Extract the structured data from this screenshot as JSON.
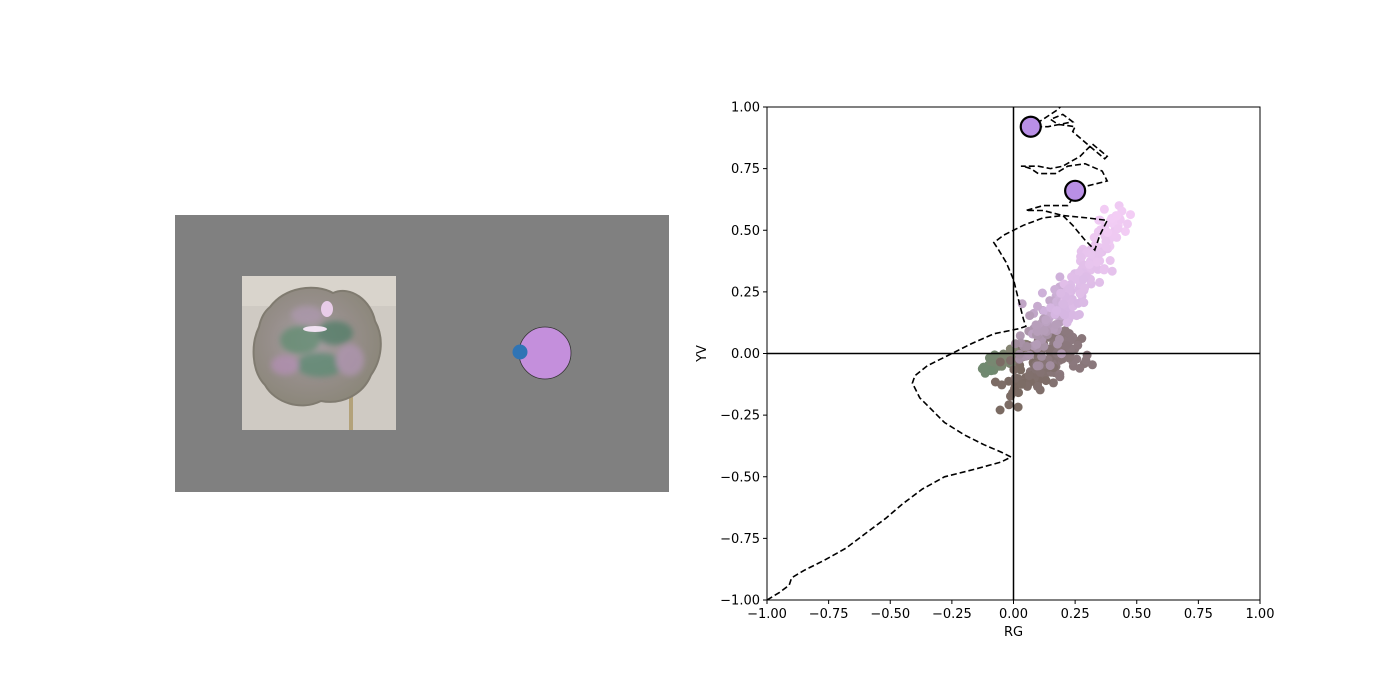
{
  "stimulus": {
    "background_color": "#808080",
    "photo_icon": "iridescent-blob-photo",
    "target_color": "#c48fdc",
    "marker_color": "#2f74b5"
  },
  "chart_data": {
    "type": "scatter",
    "xlabel": "RG",
    "ylabel": "YV",
    "xlim": [
      -1.0,
      1.0
    ],
    "ylim": [
      -1.0,
      1.0
    ],
    "xticks": [
      "−1.00",
      "−0.75",
      "−0.50",
      "−0.25",
      "0.00",
      "0.25",
      "0.50",
      "0.75",
      "1.00"
    ],
    "yticks": [
      "−1.00",
      "−0.75",
      "−0.50",
      "−0.25",
      "0.00",
      "0.25",
      "0.50",
      "0.75",
      "1.00"
    ],
    "grid": false,
    "axis_lines": {
      "x": 0,
      "y": 0
    },
    "highlight_points": [
      {
        "x": 0.07,
        "y": 0.92,
        "color": "#b98fe6"
      },
      {
        "x": 0.25,
        "y": 0.66,
        "color": "#b98fe6"
      }
    ],
    "trajectory": [
      [
        -1.0,
        -1.0
      ],
      [
        -0.95,
        -0.97
      ],
      [
        -0.91,
        -0.94
      ],
      [
        -0.9,
        -0.91
      ],
      [
        -0.85,
        -0.88
      ],
      [
        -0.77,
        -0.84
      ],
      [
        -0.68,
        -0.79
      ],
      [
        -0.6,
        -0.73
      ],
      [
        -0.52,
        -0.67
      ],
      [
        -0.45,
        -0.61
      ],
      [
        -0.37,
        -0.55
      ],
      [
        -0.28,
        -0.5
      ],
      [
        -0.16,
        -0.47
      ],
      [
        -0.05,
        -0.44
      ],
      [
        -0.01,
        -0.42
      ],
      [
        -0.05,
        -0.4
      ],
      [
        -0.12,
        -0.37
      ],
      [
        -0.2,
        -0.33
      ],
      [
        -0.28,
        -0.28
      ],
      [
        -0.34,
        -0.22
      ],
      [
        -0.38,
        -0.18
      ],
      [
        -0.41,
        -0.12
      ],
      [
        -0.4,
        -0.09
      ],
      [
        -0.35,
        -0.05
      ],
      [
        -0.27,
        -0.01
      ],
      [
        -0.17,
        0.04
      ],
      [
        -0.08,
        0.08
      ],
      [
        0.02,
        0.1
      ],
      [
        0.05,
        0.11
      ],
      [
        0.04,
        0.14
      ],
      [
        0.02,
        0.22
      ],
      [
        0.0,
        0.3
      ],
      [
        -0.03,
        0.37
      ],
      [
        -0.06,
        0.42
      ],
      [
        -0.08,
        0.45
      ],
      [
        -0.04,
        0.48
      ],
      [
        0.04,
        0.52
      ],
      [
        0.12,
        0.55
      ],
      [
        0.2,
        0.56
      ],
      [
        0.3,
        0.55
      ],
      [
        0.38,
        0.54
      ],
      [
        0.35,
        0.48
      ],
      [
        0.33,
        0.42
      ],
      [
        0.29,
        0.46
      ],
      [
        0.24,
        0.52
      ],
      [
        0.2,
        0.56
      ],
      [
        0.12,
        0.58
      ],
      [
        0.05,
        0.58
      ],
      [
        0.12,
        0.6
      ],
      [
        0.22,
        0.6
      ],
      [
        0.24,
        0.63
      ],
      [
        0.25,
        0.66
      ],
      [
        0.3,
        0.68
      ],
      [
        0.38,
        0.7
      ],
      [
        0.36,
        0.74
      ],
      [
        0.29,
        0.77
      ],
      [
        0.22,
        0.76
      ],
      [
        0.17,
        0.73
      ],
      [
        0.1,
        0.73
      ],
      [
        0.07,
        0.75
      ],
      [
        0.04,
        0.76
      ],
      [
        0.03,
        0.76
      ],
      [
        0.1,
        0.76
      ],
      [
        0.15,
        0.75
      ],
      [
        0.2,
        0.76
      ],
      [
        0.27,
        0.8
      ],
      [
        0.32,
        0.85
      ],
      [
        0.38,
        0.8
      ],
      [
        0.37,
        0.79
      ],
      [
        0.31,
        0.84
      ],
      [
        0.24,
        0.9
      ],
      [
        0.25,
        0.92
      ],
      [
        0.18,
        0.93
      ],
      [
        0.15,
        0.95
      ],
      [
        0.2,
        0.97
      ],
      [
        0.24,
        0.94
      ],
      [
        0.14,
        0.92
      ],
      [
        0.07,
        0.92
      ],
      [
        0.12,
        0.95
      ],
      [
        0.18,
        0.99
      ],
      [
        0.19,
        1.0
      ]
    ],
    "scatter_clusters": [
      {
        "name": "green-arm",
        "x0": -0.13,
        "y0": -0.06,
        "x1": 0.05,
        "y1": 0.02,
        "spread": 0.018,
        "color_start": "#6f8a70",
        "color_end": "#8a8272",
        "count": 70
      },
      {
        "name": "brown-body",
        "x0": 0.0,
        "y0": -0.12,
        "x1": 0.25,
        "y1": 0.02,
        "spread": 0.045,
        "color_start": "#7a6a62",
        "color_end": "#8d7a80",
        "count": 140
      },
      {
        "name": "pink-lower",
        "x0": 0.07,
        "y0": 0.0,
        "x1": 0.2,
        "y1": 0.25,
        "spread": 0.035,
        "color_start": "#a08c9c",
        "color_end": "#d2b4de",
        "count": 90
      },
      {
        "name": "pink-upper",
        "x0": 0.2,
        "y0": 0.15,
        "x1": 0.42,
        "y1": 0.56,
        "spread": 0.03,
        "color_start": "#d6b6e2",
        "color_end": "#f3cdf5",
        "count": 130
      }
    ]
  }
}
